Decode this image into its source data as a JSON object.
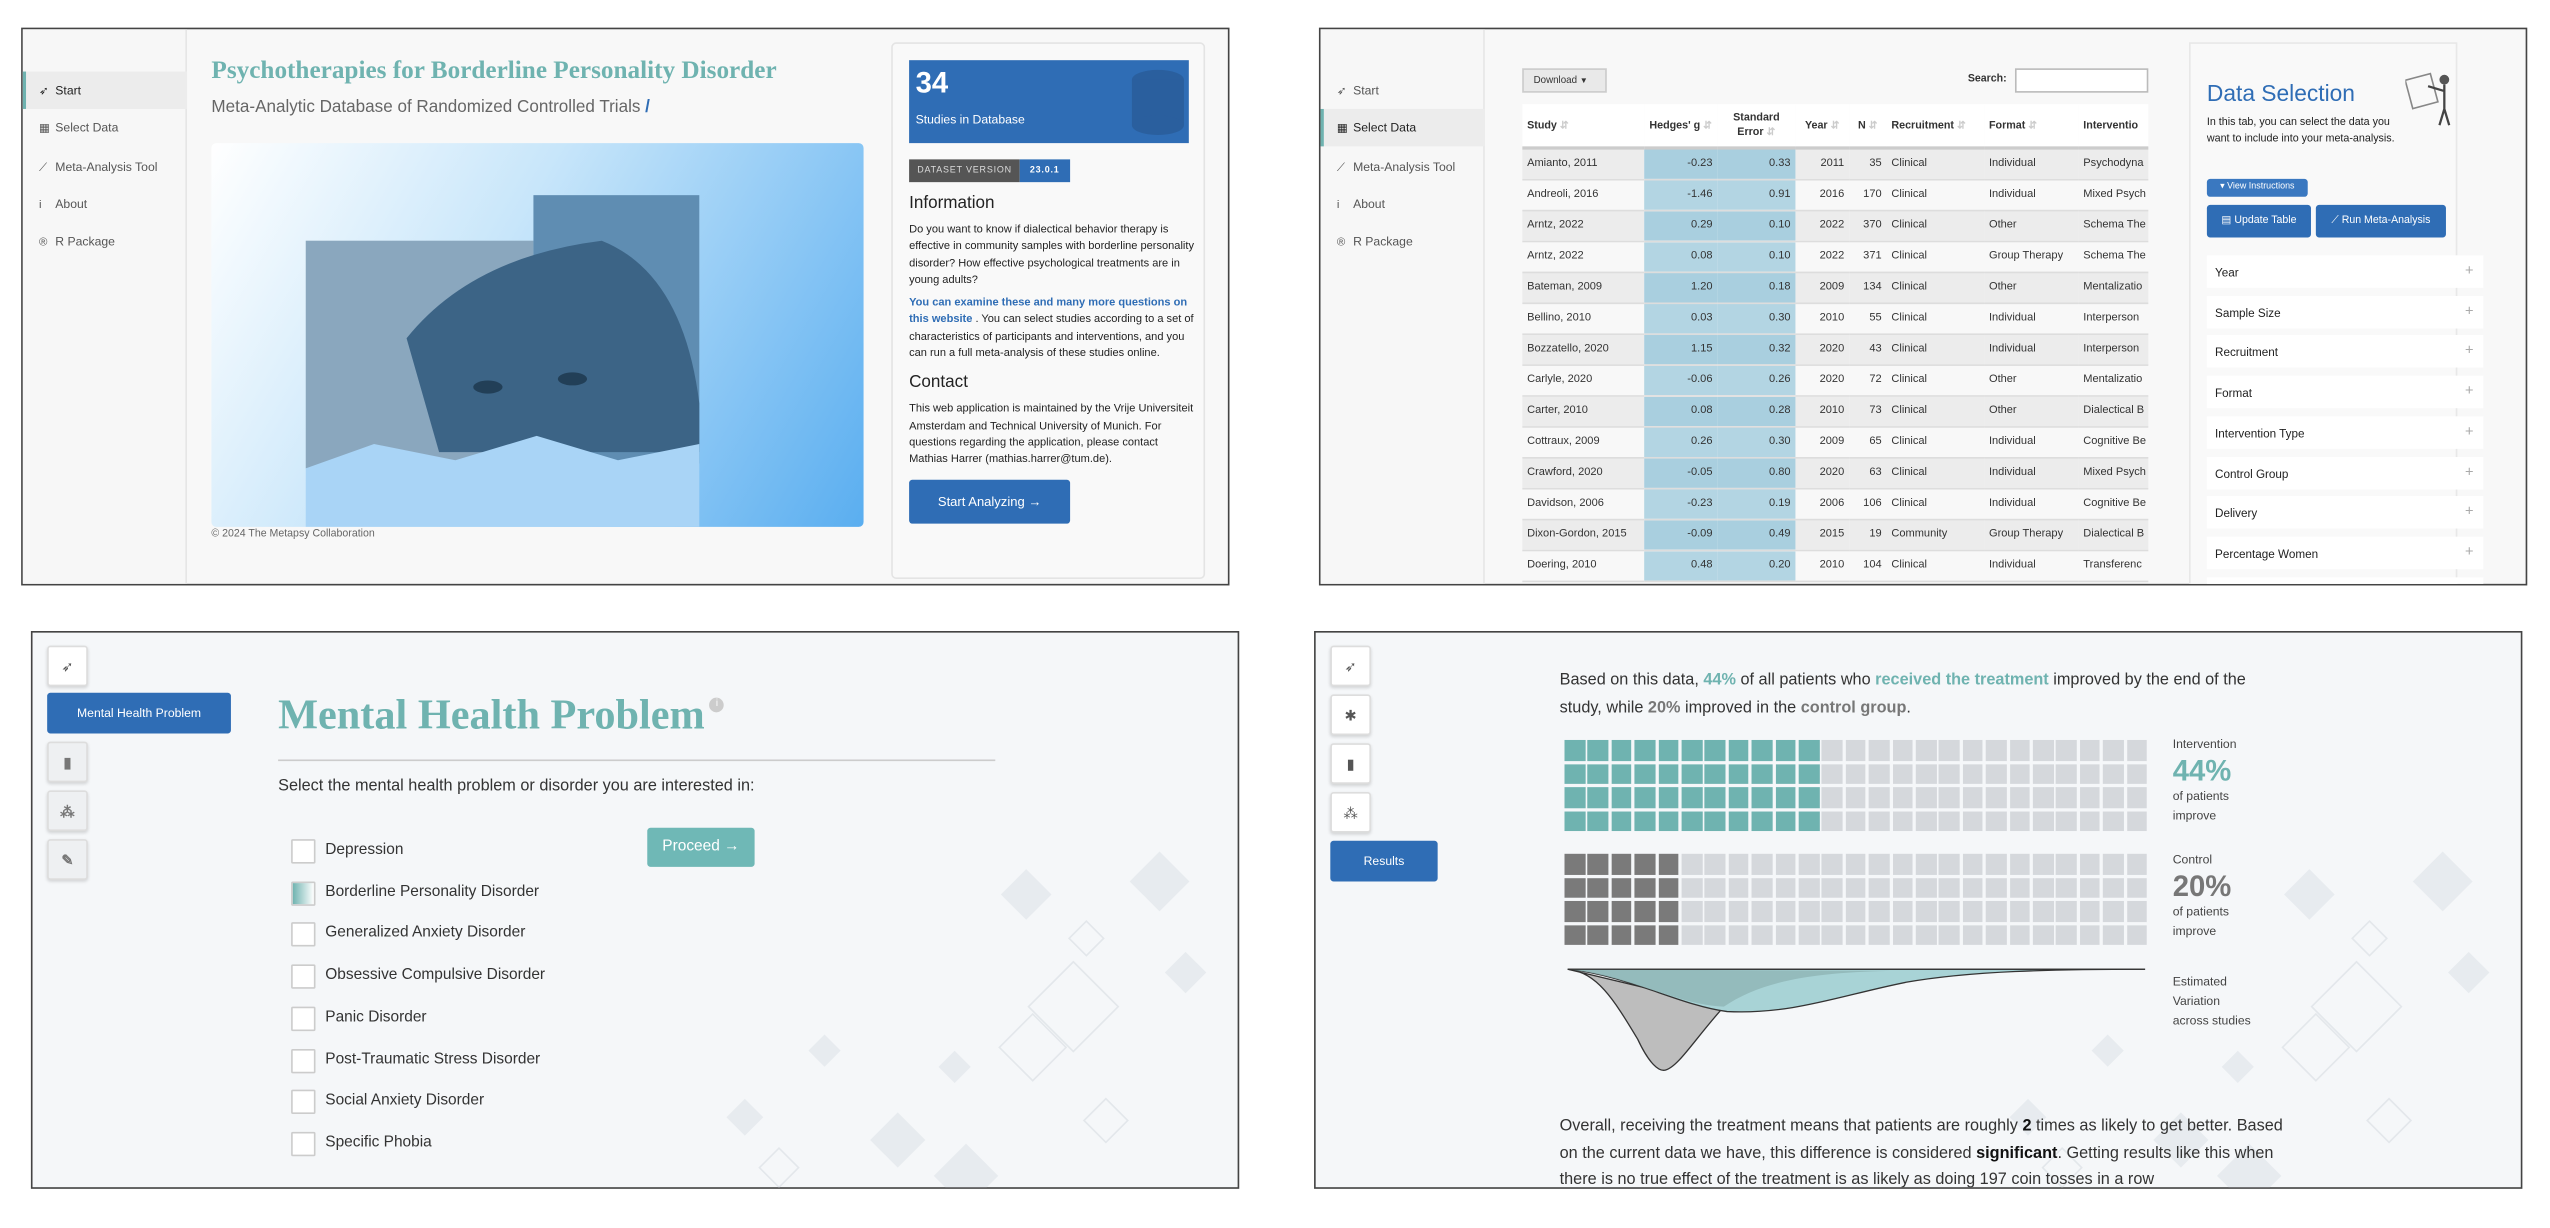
{
  "colors": {
    "teal": "#6fb3b0",
    "blue": "#2f6db5",
    "gray": "#7a7a7a",
    "empty": "#d5d8dc"
  },
  "start": {
    "sidebar": [
      {
        "icon": "rocket-icon",
        "label": "Start",
        "active": true
      },
      {
        "icon": "table-icon",
        "label": "Select Data"
      },
      {
        "icon": "chart-line-icon",
        "label": "Meta-Analysis Tool"
      },
      {
        "icon": "info-icon",
        "label": "About"
      },
      {
        "icon": "r-logo-icon",
        "label": "R Package"
      }
    ],
    "title": "Psychotherapies for Borderline Personality Disorder",
    "subtitle": "Meta-Analytic Database of Randomized Controlled Trials",
    "subtitle_mark": "/",
    "copyright": "© 2024 The Metapsy Collaboration",
    "studies_count": "34",
    "studies_label": "Studies in Database",
    "version_label": "DATASET VERSION",
    "version": "23.0.1",
    "info_heading": "Information",
    "info_text": "Do you want to know if dialectical behavior therapy is effective in community samples with borderline personality disorder? How effective psychological treatments are in young adults?",
    "info_link": "You can examine these and many more questions on this website",
    "info_text2": " . You can select studies according to a set of characteristics of participants and interventions, and you can run a full meta-analysis of these studies online.",
    "contact_heading": "Contact",
    "contact_text": "This web application is maintained by the Vrije Universiteit Amsterdam and Technical University of Munich. For questions regarding the application, please contact Mathias Harrer (mathias.harrer@tum.de).",
    "start_button": "Start Analyzing →"
  },
  "select": {
    "sidebar": [
      {
        "icon": "rocket-icon",
        "label": "Start"
      },
      {
        "icon": "table-icon",
        "label": "Select Data",
        "active": true
      },
      {
        "icon": "chart-line-icon",
        "label": "Meta-Analysis Tool"
      },
      {
        "icon": "info-icon",
        "label": "About"
      },
      {
        "icon": "r-logo-icon",
        "label": "R Package"
      }
    ],
    "download": "Download",
    "search_label": "Search:",
    "search_value": "",
    "columns": [
      "Study",
      "Hedges' g",
      "Standard Error",
      "Year",
      "N",
      "Recruitment",
      "Format",
      "Interventio"
    ],
    "rows": [
      [
        "Amianto, 2011",
        "-0.23",
        "0.33",
        "2011",
        "35",
        "Clinical",
        "Individual",
        "Psychodyna"
      ],
      [
        "Andreoli, 2016",
        "-1.46",
        "0.91",
        "2016",
        "170",
        "Clinical",
        "Individual",
        "Mixed Psych"
      ],
      [
        "Arntz, 2022",
        "0.29",
        "0.10",
        "2022",
        "370",
        "Clinical",
        "Other",
        "Schema The"
      ],
      [
        "Arntz, 2022",
        "0.08",
        "0.10",
        "2022",
        "371",
        "Clinical",
        "Group Therapy",
        "Schema The"
      ],
      [
        "Bateman, 2009",
        "1.20",
        "0.18",
        "2009",
        "134",
        "Clinical",
        "Other",
        "Mentalizatio"
      ],
      [
        "Bellino, 2010",
        "0.03",
        "0.30",
        "2010",
        "55",
        "Clinical",
        "Individual",
        "Interperson"
      ],
      [
        "Bozzatello, 2020",
        "1.15",
        "0.32",
        "2020",
        "43",
        "Clinical",
        "Individual",
        "Interperson"
      ],
      [
        "Carlyle, 2020",
        "-0.06",
        "0.26",
        "2020",
        "72",
        "Clinical",
        "Other",
        "Mentalizatio"
      ],
      [
        "Carter, 2010",
        "0.08",
        "0.28",
        "2010",
        "73",
        "Clinical",
        "Other",
        "Dialectical B"
      ],
      [
        "Cottraux, 2009",
        "0.26",
        "0.30",
        "2009",
        "65",
        "Clinical",
        "Individual",
        "Cognitive Be"
      ],
      [
        "Crawford, 2020",
        "-0.05",
        "0.80",
        "2020",
        "63",
        "Clinical",
        "Individual",
        "Mixed Psych"
      ],
      [
        "Davidson, 2006",
        "-0.23",
        "0.19",
        "2006",
        "106",
        "Clinical",
        "Individual",
        "Cognitive Be"
      ],
      [
        "Dixon-Gordon, 2015",
        "-0.09",
        "0.49",
        "2015",
        "19",
        "Community",
        "Group Therapy",
        "Dialectical B"
      ],
      [
        "Doering, 2010",
        "0.48",
        "0.20",
        "2010",
        "104",
        "Clinical",
        "Individual",
        "Transferenc"
      ]
    ],
    "panel_title": "Data Selection",
    "panel_text": "In this tab, you can select the data you want to include into your meta-analysis.",
    "view_instructions": "View Instructions",
    "update_table": "Update Table",
    "run_meta": "Run Meta-Analysis",
    "filters": [
      "Year",
      "Sample Size",
      "Recruitment",
      "Format",
      "Intervention Type",
      "Control Group",
      "Delivery",
      "Percentage Women"
    ]
  },
  "problem": {
    "active_step": "Mental Health Problem",
    "title": "Mental Health Problem",
    "prompt": "Select the mental health problem or disorder you are interested in:",
    "proceed": "Proceed →",
    "options": [
      {
        "label": "Depression",
        "checked": false
      },
      {
        "label": "Borderline Personality Disorder",
        "checked": true
      },
      {
        "label": "Generalized Anxiety Disorder",
        "checked": false
      },
      {
        "label": "Obsessive Compulsive Disorder",
        "checked": false
      },
      {
        "label": "Panic Disorder",
        "checked": false
      },
      {
        "label": "Post-Traumatic Stress Disorder",
        "checked": false
      },
      {
        "label": "Social Anxiety Disorder",
        "checked": false
      },
      {
        "label": "Specific Phobia",
        "checked": false
      }
    ]
  },
  "results": {
    "step_icons": [
      "rocket-icon",
      "person-icon",
      "clipboard-icon",
      "group-icon"
    ],
    "active_step": "Results",
    "summary": [
      {
        "t": "Based on this data, "
      },
      {
        "t": "44%",
        "s": "t"
      },
      {
        "t": " of all patients who "
      },
      {
        "t": "received the treatment",
        "s": "t"
      },
      {
        "t": " improved by the end of the study, while "
      },
      {
        "t": "20%",
        "s": "g"
      },
      {
        "t": " improved in the "
      },
      {
        "t": "control group",
        "s": "g"
      },
      {
        "t": "."
      }
    ],
    "intervention": {
      "label": "Intervention",
      "percent": 44,
      "percent_label": "44%",
      "caption": "of patients improve"
    },
    "control": {
      "label": "Control",
      "percent": 20,
      "percent_label": "20%",
      "caption": "of patients improve"
    },
    "variation_label": "Estimated Variation",
    "variation_caption": "across studies",
    "conclusion": [
      {
        "t": "Overall, receiving the treatment means that patients are roughly "
      },
      {
        "t": "2",
        "s": "k"
      },
      {
        "t": " times as likely to get better. Based on the current data we have, this difference is considered "
      },
      {
        "t": "significant",
        "s": "k"
      },
      {
        "t": ". Getting results like this when there is no true effect of the treatment is as likely as doing 197 coin tosses in a row"
      }
    ]
  }
}
